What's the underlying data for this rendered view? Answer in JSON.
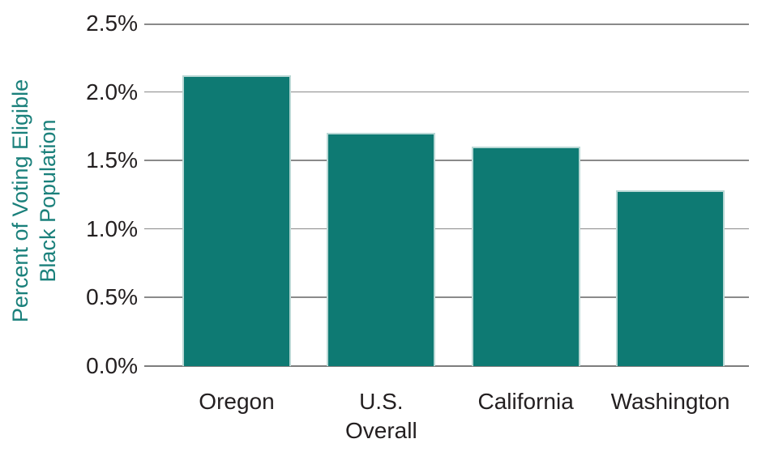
{
  "chart_data": {
    "type": "bar",
    "title": "",
    "categories": [
      "Oregon",
      "U.S. Overall",
      "California",
      "Washington"
    ],
    "values": [
      2.12,
      1.7,
      1.6,
      1.28
    ],
    "category_label_lines": [
      [
        "Oregon"
      ],
      [
        "U.S.",
        "Overall"
      ],
      [
        "California"
      ],
      [
        "Washington"
      ]
    ],
    "xlabel": "",
    "ylabel": "Percent of Voting Eligible Black Population",
    "ylabel_lines": [
      "Percent of Voting Eligible",
      "Black Population"
    ],
    "ylim": [
      0,
      2.5
    ],
    "yticks": [
      {
        "value": 0.0,
        "label": "0.0%"
      },
      {
        "value": 0.5,
        "label": "0.5%"
      },
      {
        "value": 1.0,
        "label": "1.0%"
      },
      {
        "value": 1.5,
        "label": "1.5%"
      },
      {
        "value": 2.0,
        "label": "2.0%"
      },
      {
        "value": 2.5,
        "label": "2.5%"
      }
    ],
    "grid": true,
    "legend": false,
    "colors": {
      "bar_fill": "#0e7a73",
      "bar_border": "#b9d8d5",
      "gridline": "#8a8a8a",
      "tick_text": "#231f20",
      "ylabel_text": "#1a807b",
      "background": "#ffffff"
    }
  }
}
